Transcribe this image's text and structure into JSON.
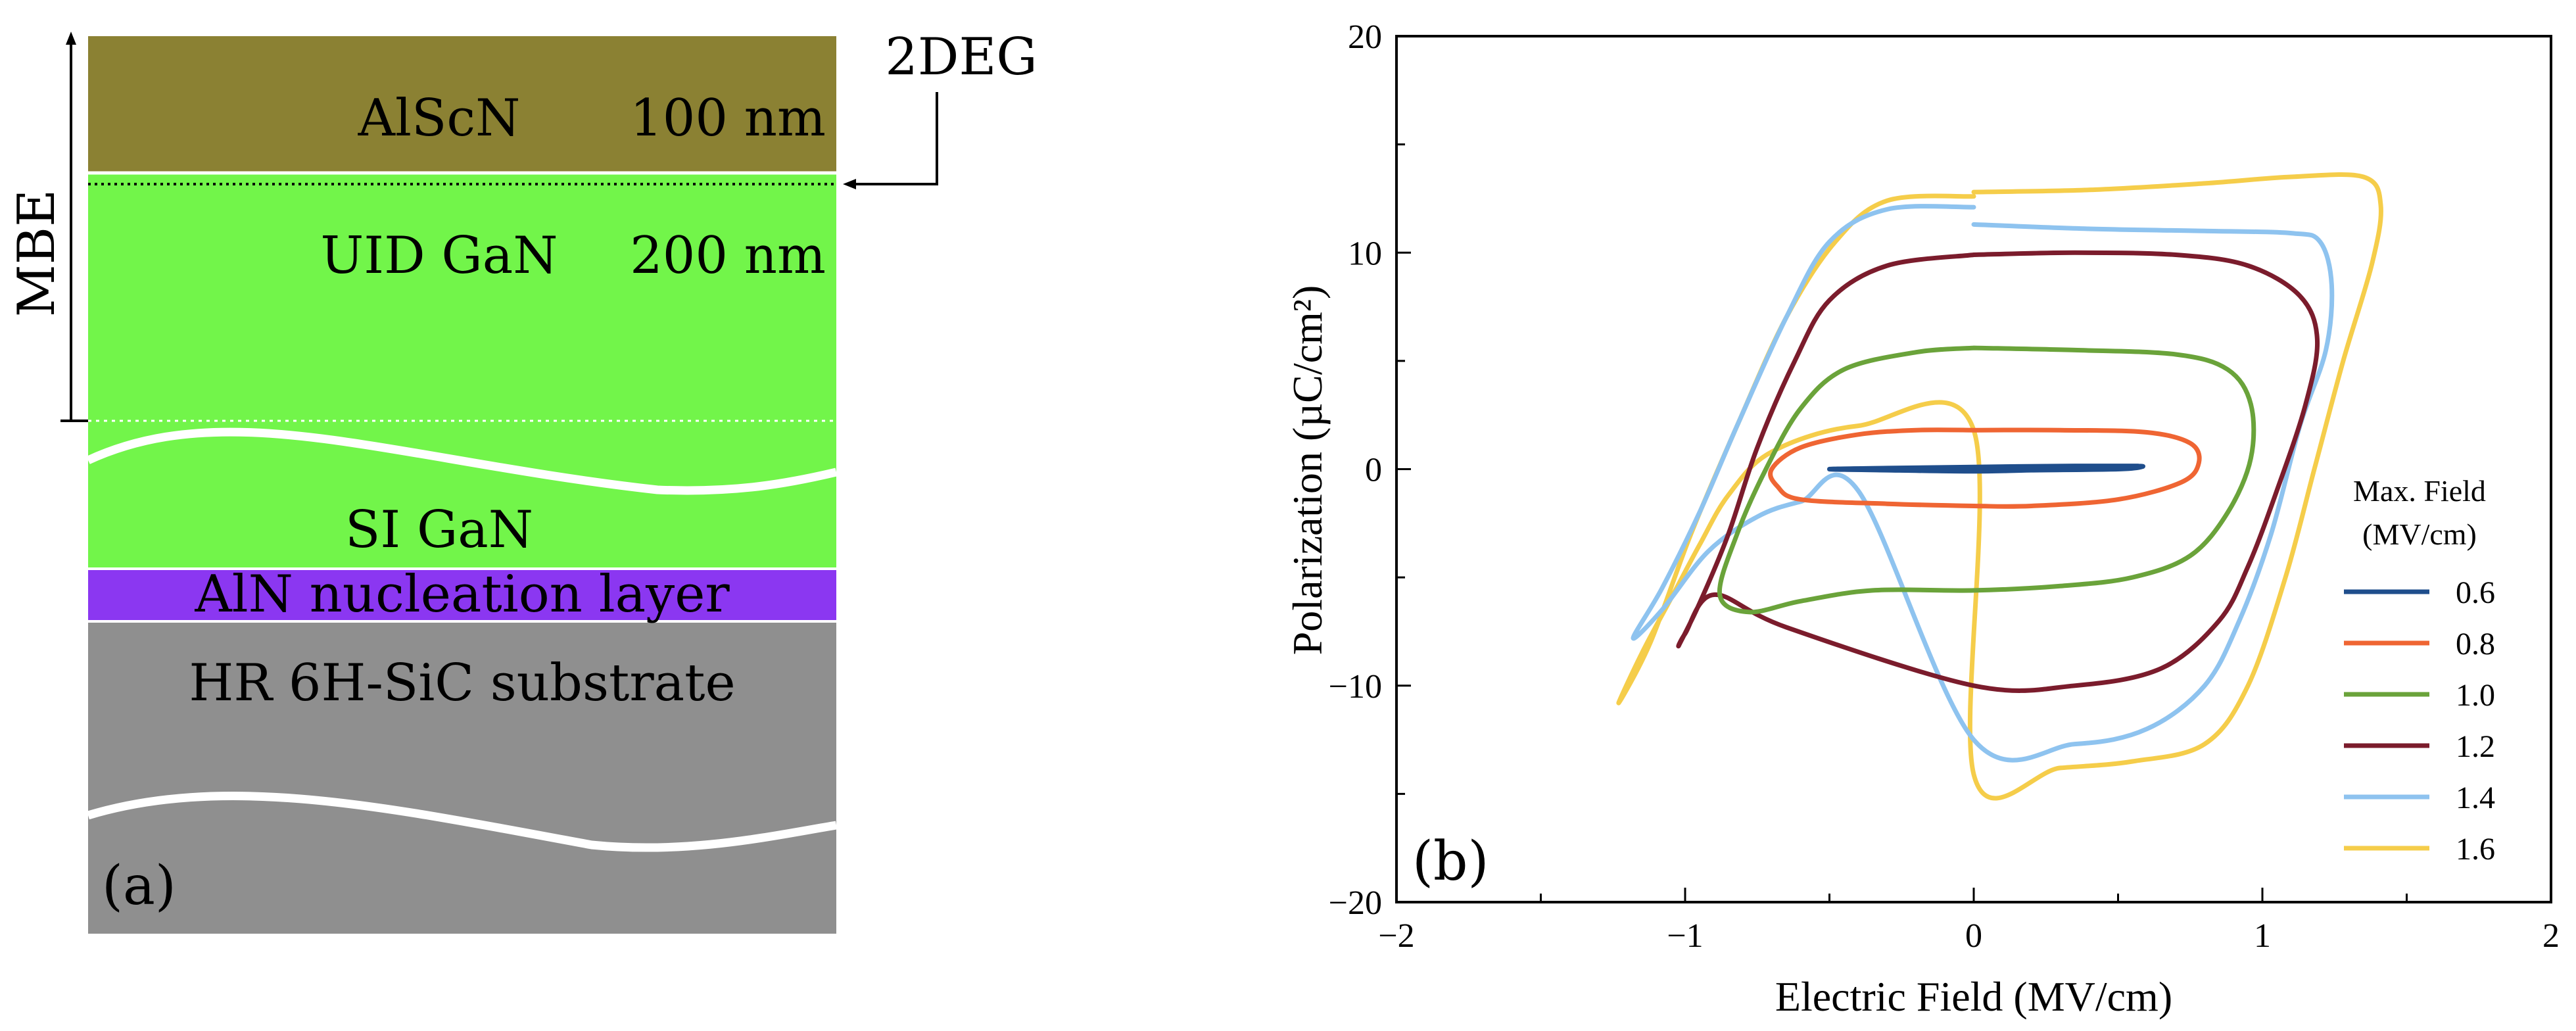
{
  "panel_a": {
    "label": "(a)",
    "colors": {
      "alscn": "#8b8133",
      "gan": "#72f54a",
      "aln": "#8b37f1",
      "sic": "#8f8f8f",
      "text": "#000000"
    },
    "layers": {
      "alscn": {
        "name": "AlScN",
        "thickness": "100 nm"
      },
      "uid_gan": {
        "name": "UID GaN",
        "thickness": "200 nm"
      },
      "si_gan": {
        "name": "SI GaN"
      },
      "aln": {
        "name": "AlN nucleation layer"
      },
      "sic": {
        "name": "HR 6H-SiC substrate"
      }
    },
    "mbe_label": "MBE",
    "twodeg_label": "2DEG"
  },
  "panel_b": {
    "label": "(b)",
    "chart_data": {
      "type": "line",
      "title": "",
      "xlabel": "Electric Field (MV/cm)",
      "ylabel": "Polarization (µC/cm²)",
      "xlim": [
        -2,
        2
      ],
      "ylim": [
        -20,
        20
      ],
      "xticks": [
        -2,
        -1,
        0,
        1,
        2
      ],
      "xtick_labels": [
        "−2",
        "−1",
        "0",
        "1",
        "2"
      ],
      "yticks": [
        -20,
        -10,
        0,
        10,
        20
      ],
      "ytick_labels": [
        "−20",
        "−10",
        "0",
        "10",
        "20"
      ],
      "legend": {
        "title_line1": "Max. Field",
        "title_line2": "(MV/cm)",
        "placement": "right"
      },
      "series": [
        {
          "name": "0.6",
          "color": "#1f4e8c",
          "points": [
            [
              0,
              0.05
            ],
            [
              0.3,
              0.1
            ],
            [
              0.55,
              0.15
            ],
            [
              0.58,
              0.1
            ],
            [
              0.5,
              0
            ],
            [
              0.2,
              -0.05
            ],
            [
              0,
              -0.1
            ],
            [
              -0.3,
              -0.05
            ],
            [
              -0.5,
              0
            ],
            [
              -0.3,
              0.05
            ],
            [
              0,
              0.1
            ],
            [
              0.35,
              0.15
            ],
            [
              0.57,
              0.15
            ]
          ]
        },
        {
          "name": "0.8",
          "color": "#ef6533",
          "points": [
            [
              0,
              1.8
            ],
            [
              0.3,
              1.8
            ],
            [
              0.6,
              1.7
            ],
            [
              0.75,
              1.2
            ],
            [
              0.78,
              0.3
            ],
            [
              0.72,
              -0.6
            ],
            [
              0.5,
              -1.4
            ],
            [
              0.2,
              -1.7
            ],
            [
              0,
              -1.7
            ],
            [
              -0.3,
              -1.6
            ],
            [
              -0.6,
              -1.4
            ],
            [
              -0.68,
              -0.8
            ],
            [
              -0.7,
              0
            ],
            [
              -0.6,
              1.0
            ],
            [
              -0.4,
              1.6
            ],
            [
              -0.2,
              1.8
            ],
            [
              0,
              1.8
            ]
          ]
        },
        {
          "name": "1.0",
          "color": "#6aa33a",
          "points": [
            [
              0,
              5.6
            ],
            [
              0.35,
              5.5
            ],
            [
              0.7,
              5.3
            ],
            [
              0.88,
              4.6
            ],
            [
              0.96,
              3.0
            ],
            [
              0.96,
              0.5
            ],
            [
              0.88,
              -2.0
            ],
            [
              0.75,
              -4.0
            ],
            [
              0.55,
              -5.0
            ],
            [
              0.3,
              -5.4
            ],
            [
              0,
              -5.6
            ],
            [
              -0.35,
              -5.6
            ],
            [
              -0.6,
              -6.1
            ],
            [
              -0.78,
              -6.6
            ],
            [
              -0.88,
              -5.8
            ],
            [
              -0.82,
              -3.0
            ],
            [
              -0.72,
              0
            ],
            [
              -0.6,
              2.8
            ],
            [
              -0.45,
              4.6
            ],
            [
              -0.2,
              5.4
            ],
            [
              0,
              5.6
            ]
          ]
        },
        {
          "name": "1.2",
          "color": "#7b1c2c",
          "points": [
            [
              0,
              9.9
            ],
            [
              0.35,
              10.0
            ],
            [
              0.7,
              9.9
            ],
            [
              0.95,
              9.4
            ],
            [
              1.13,
              8.0
            ],
            [
              1.19,
              6.0
            ],
            [
              1.15,
              3.0
            ],
            [
              1.05,
              -1.0
            ],
            [
              0.95,
              -4.5
            ],
            [
              0.85,
              -7.0
            ],
            [
              0.65,
              -9.2
            ],
            [
              0.35,
              -10.0
            ],
            [
              0,
              -10.0
            ],
            [
              -0.65,
              -7.3
            ],
            [
              -0.9,
              -5.8
            ],
            [
              -1.0,
              -7.6
            ],
            [
              -1.02,
              -8.1
            ],
            [
              -0.95,
              -6.2
            ],
            [
              -0.85,
              -3.0
            ],
            [
              -0.75,
              1.0
            ],
            [
              -0.62,
              5.0
            ],
            [
              -0.5,
              7.8
            ],
            [
              -0.3,
              9.4
            ],
            [
              0,
              9.9
            ]
          ]
        },
        {
          "name": "1.4",
          "color": "#8ec3ef",
          "points": [
            [
              0,
              11.3
            ],
            [
              0.4,
              11.1
            ],
            [
              0.8,
              11.0
            ],
            [
              1.1,
              10.9
            ],
            [
              1.2,
              10.5
            ],
            [
              1.24,
              8.5
            ],
            [
              1.22,
              5.5
            ],
            [
              1.13,
              2.0
            ],
            [
              1.03,
              -3.0
            ],
            [
              0.92,
              -7.0
            ],
            [
              0.8,
              -10.0
            ],
            [
              0.6,
              -12.0
            ],
            [
              0.35,
              -12.7
            ],
            [
              0,
              -12.5
            ],
            [
              -0.4,
              -1.0
            ],
            [
              -0.6,
              -1.5
            ],
            [
              -0.75,
              -2.2
            ],
            [
              -0.92,
              -3.8
            ],
            [
              -1.08,
              -6.5
            ],
            [
              -1.18,
              -7.8
            ],
            [
              -1.08,
              -5.5
            ],
            [
              -0.95,
              -2.0
            ],
            [
              -0.82,
              2.0
            ],
            [
              -0.65,
              7.0
            ],
            [
              -0.5,
              10.5
            ],
            [
              -0.3,
              12.0
            ],
            [
              0,
              12.1
            ]
          ]
        },
        {
          "name": "1.6",
          "color": "#f5cd4a",
          "points": [
            [
              0,
              12.8
            ],
            [
              0.4,
              12.9
            ],
            [
              0.8,
              13.2
            ],
            [
              1.1,
              13.5
            ],
            [
              1.35,
              13.5
            ],
            [
              1.41,
              12.2
            ],
            [
              1.38,
              9.5
            ],
            [
              1.28,
              5.0
            ],
            [
              1.18,
              0
            ],
            [
              1.08,
              -5.0
            ],
            [
              0.95,
              -10.0
            ],
            [
              0.8,
              -12.7
            ],
            [
              0.55,
              -13.5
            ],
            [
              0.3,
              -13.8
            ],
            [
              0,
              -14.1
            ],
            [
              0,
              1.8
            ],
            [
              -0.4,
              2.0
            ],
            [
              -0.7,
              0.8
            ],
            [
              -0.85,
              -1.2
            ],
            [
              -0.95,
              -3.5
            ],
            [
              -1.05,
              -6.0
            ],
            [
              -1.15,
              -8.5
            ],
            [
              -1.23,
              -10.8
            ],
            [
              -1.12,
              -8.0
            ],
            [
              -0.98,
              -3.0
            ],
            [
              -0.82,
              2.0
            ],
            [
              -0.65,
              7.0
            ],
            [
              -0.48,
              10.5
            ],
            [
              -0.3,
              12.4
            ],
            [
              0,
              12.6
            ]
          ]
        }
      ]
    }
  }
}
